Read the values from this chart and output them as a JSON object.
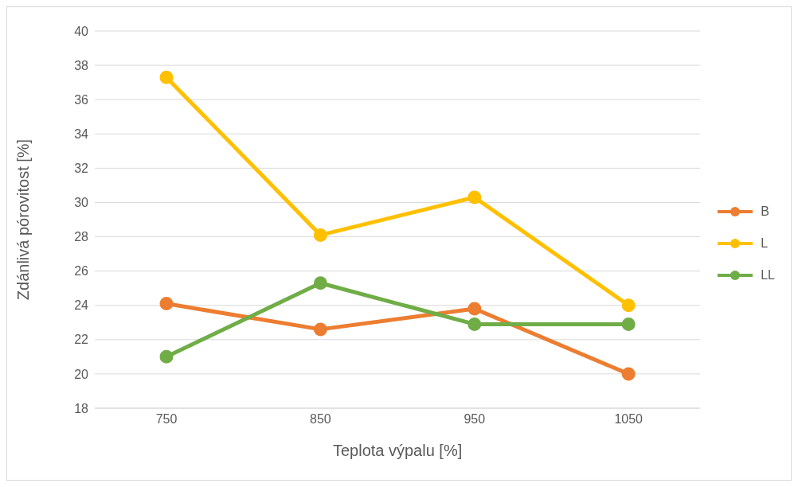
{
  "chart_data": {
    "type": "line",
    "xlabel": "Teplota výpalu [%]",
    "ylabel": "Zdánlivá pórovitost [%]",
    "categories": [
      "750",
      "850",
      "950",
      "1050"
    ],
    "series": [
      {
        "name": "B",
        "color": "#ed7d31",
        "values": [
          24.1,
          22.6,
          23.8,
          20.0
        ]
      },
      {
        "name": "L",
        "color": "#ffc000",
        "values": [
          37.3,
          28.1,
          30.3,
          24.0
        ]
      },
      {
        "name": "LL",
        "color": "#70ad47",
        "values": [
          21.0,
          25.3,
          22.9,
          22.9
        ]
      }
    ],
    "ylim": [
      18,
      40
    ],
    "yticks": [
      18,
      20,
      22,
      24,
      26,
      28,
      30,
      32,
      34,
      36,
      38,
      40
    ],
    "grid": "y",
    "legend": "right",
    "marker": "circle",
    "line_style": "solid"
  }
}
